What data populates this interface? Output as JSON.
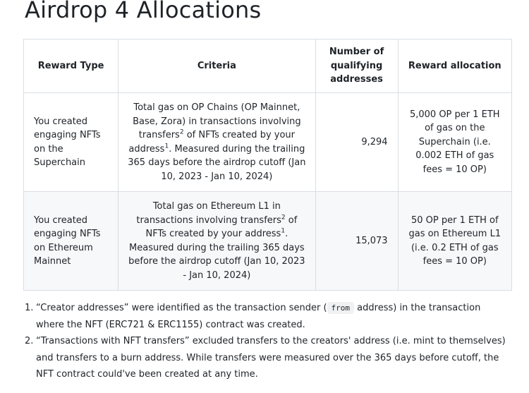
{
  "page": {
    "title": "Airdrop 4 Allocations"
  },
  "table": {
    "headers": {
      "reward_type": "Reward Type",
      "criteria": "Criteria",
      "qualifying_line1": "Number of",
      "qualifying_line2": "qualifying",
      "qualifying_line3": "addresses",
      "allocation": "Reward allocation"
    },
    "rows": [
      {
        "reward_type": "You created engaging NFTs on the Superchain",
        "criteria_a": "Total gas on OP Chains (OP Mainnet, Base, Zora) in transactions involving transfers",
        "criteria_sup_a": "2",
        "criteria_b": " of NFTs created by your address",
        "criteria_sup_b": "1",
        "criteria_c": ". Measured during the trailing 365 days before the airdrop cutoff (Jan 10, 2023 - Jan 10, 2024)",
        "qualifying": "9,294",
        "allocation": "5,000 OP per 1 ETH of gas on the Superchain (i.e. 0.002 ETH of gas fees = 10 OP)"
      },
      {
        "reward_type": "You created engaging NFTs on Ethereum Mainnet",
        "criteria_a": "Total gas on Ethereum L1 in transactions involving transfers",
        "criteria_sup_a": "2",
        "criteria_b": " of NFTs created by your address",
        "criteria_sup_b": "1",
        "criteria_c": ". Measured during the trailing 365 days before the airdrop cutoff (Jan 10, 2023 - Jan 10, 2024)",
        "qualifying": "15,073",
        "allocation": "50 OP per 1 ETH of gas on Ethereum L1 (i.e. 0.2 ETH of gas fees = 10 OP)"
      }
    ]
  },
  "notes": [
    {
      "marker": "1.",
      "text_before": "“Creator addresses” were identified as the transaction sender (",
      "code": "from",
      "text_after": " address) in the transaction where the NFT (ERC721 & ERC1155) contract was created."
    },
    {
      "marker": "2.",
      "text": "“Transactions with NFT transfers” excluded transfers to the creators' address (i.e. mint to themselves) and transfers to a burn address. While transfers were measured over the 365 days before cutoff, the NFT contract could've been created at any time."
    }
  ]
}
